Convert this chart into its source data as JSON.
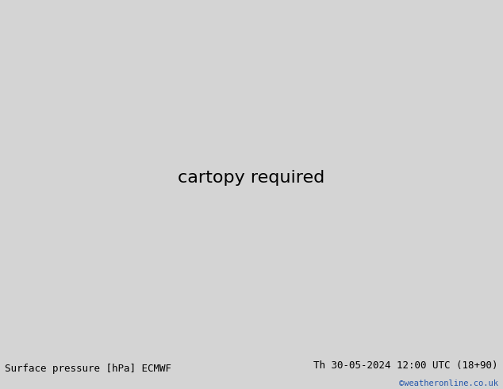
{
  "title_left": "Surface pressure [hPa] ECMWF",
  "title_right": "Th 30-05-2024 12:00 UTC (18+90)",
  "credit": "©weatheronline.co.uk",
  "bg_color": "#d4d4d4",
  "land_color": "#b8dba8",
  "land_border_color": "#888888",
  "ocean_color": "#e0e0e0",
  "bottom_bar_color": "#c8c8c8",
  "credit_color": "#2255aa",
  "title_fontsize": 9,
  "lon_min": -110,
  "lon_max": 10,
  "lat_min": -60,
  "lat_max": 18
}
